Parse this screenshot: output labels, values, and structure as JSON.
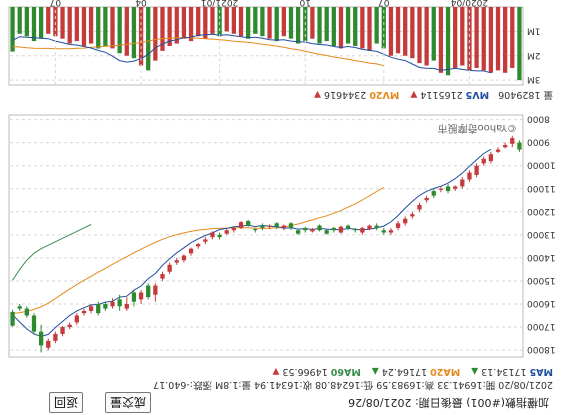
{
  "header": {
    "title_line": "加權指數(#001) 最後日期: 2021/08/26",
    "button_back": "返回",
    "button_volume": "成交量",
    "ohlc_line": "2021/08/20 開:16941.33 高:16983.59 低:16248.08 收:16341.94 量:1.8M 漲跌:-640.17",
    "ma_legend": [
      {
        "label": "MA5",
        "value": "17134.13",
        "arrow": "▲",
        "color": "#1f4e9e"
      },
      {
        "label": "MA20",
        "value": "17164.24",
        "arrow": "▲",
        "color": "#e38a1e"
      },
      {
        "label": "MA60",
        "value": "14966.53",
        "arrow": "▼",
        "color": "#3b8f4f"
      }
    ]
  },
  "volume_legend": {
    "prefix": "量",
    "value": "1829406",
    "items": [
      {
        "label": "MV5",
        "value": "2165114",
        "arrow": "▼",
        "color": "#1f4e9e"
      },
      {
        "label": "MV20",
        "value": "2344616",
        "arrow": "▼",
        "color": "#e38a1e"
      }
    ]
  },
  "watermark": "©Yahoo奇摩股市",
  "colors": {
    "up": "#c53a3a",
    "down": "#2f8a2f",
    "ma5": "#1f4e9e",
    "ma20": "#e38a1e",
    "ma60": "#3b8f4f",
    "grid": "#d6d6d6"
  },
  "chart_data": {
    "type": "candlestick",
    "price_axis": {
      "ticks": [
        8000,
        9000,
        10000,
        11000,
        12000,
        13000,
        14000,
        15000,
        16000,
        17000,
        18000
      ],
      "ylim": [
        7800,
        18300
      ]
    },
    "volume_axis": {
      "ticks": [
        "1M",
        "2M",
        "3M"
      ],
      "values": [
        1000000,
        2000000,
        3000000
      ],
      "ylim": [
        0,
        3200000
      ]
    },
    "x_labels": [
      "2020/04",
      "07",
      "10",
      "2021/01",
      "04",
      "07"
    ],
    "candles": [
      {
        "o": 9300,
        "c": 9000,
        "h": 9400,
        "l": 8900
      },
      {
        "o": 8800,
        "c": 9050,
        "h": 9200,
        "l": 8700
      },
      {
        "o": 9100,
        "c": 9200,
        "h": 9250,
        "l": 9000
      },
      {
        "o": 9300,
        "c": 9400,
        "h": 9450,
        "l": 9200
      },
      {
        "o": 9500,
        "c": 9800,
        "h": 9900,
        "l": 9400
      },
      {
        "o": 9700,
        "c": 9900,
        "h": 10000,
        "l": 9600
      },
      {
        "o": 10000,
        "c": 10400,
        "h": 10500,
        "l": 9900
      },
      {
        "o": 10300,
        "c": 10600,
        "h": 10700,
        "l": 10200
      },
      {
        "o": 10600,
        "c": 10900,
        "h": 11000,
        "l": 10500
      },
      {
        "o": 10900,
        "c": 11000,
        "h": 11100,
        "l": 10850
      },
      {
        "o": 11100,
        "c": 10900,
        "h": 11200,
        "l": 10800
      },
      {
        "o": 11000,
        "c": 11050,
        "h": 11150,
        "l": 10900
      },
      {
        "o": 11300,
        "c": 11100,
        "h": 11400,
        "l": 11000
      },
      {
        "o": 11400,
        "c": 11500,
        "h": 11600,
        "l": 11300
      },
      {
        "o": 11700,
        "c": 11900,
        "h": 12000,
        "l": 11600
      },
      {
        "o": 12100,
        "c": 12200,
        "h": 12300,
        "l": 12000
      },
      {
        "o": 12300,
        "c": 12500,
        "h": 12600,
        "l": 12200
      },
      {
        "o": 12500,
        "c": 12700,
        "h": 12800,
        "l": 12400
      },
      {
        "o": 12800,
        "c": 12900,
        "h": 13000,
        "l": 12700
      },
      {
        "o": 12900,
        "c": 12800,
        "h": 13000,
        "l": 12700
      },
      {
        "o": 12700,
        "c": 12600,
        "h": 12800,
        "l": 12500
      },
      {
        "o": 12600,
        "c": 12750,
        "h": 12800,
        "l": 12550
      },
      {
        "o": 12700,
        "c": 12900,
        "h": 13000,
        "l": 12650
      },
      {
        "o": 12800,
        "c": 12750,
        "h": 12900,
        "l": 12700
      },
      {
        "o": 12700,
        "c": 12600,
        "h": 12800,
        "l": 12550
      },
      {
        "o": 12650,
        "c": 12900,
        "h": 12950,
        "l": 12600
      },
      {
        "o": 12800,
        "c": 12700,
        "h": 12900,
        "l": 12650
      },
      {
        "o": 12950,
        "c": 12800,
        "h": 13000,
        "l": 12750
      },
      {
        "o": 12800,
        "c": 12600,
        "h": 12850,
        "l": 12550
      },
      {
        "o": 12750,
        "c": 12850,
        "h": 12900,
        "l": 12700
      },
      {
        "o": 12800,
        "c": 12700,
        "h": 12900,
        "l": 12650
      },
      {
        "o": 12950,
        "c": 12800,
        "h": 13000,
        "l": 12750
      },
      {
        "o": 12700,
        "c": 12500,
        "h": 12800,
        "l": 12450
      },
      {
        "o": 12600,
        "c": 12700,
        "h": 12800,
        "l": 12550
      },
      {
        "o": 12650,
        "c": 12500,
        "h": 12750,
        "l": 12450
      },
      {
        "o": 12600,
        "c": 12650,
        "h": 12750,
        "l": 12550
      },
      {
        "o": 12700,
        "c": 12600,
        "h": 12800,
        "l": 12500
      },
      {
        "o": 12800,
        "c": 12750,
        "h": 12900,
        "l": 12700
      },
      {
        "o": 12600,
        "c": 12400,
        "h": 12650,
        "l": 12350
      },
      {
        "o": 12450,
        "c": 12700,
        "h": 12750,
        "l": 12400
      },
      {
        "o": 12700,
        "c": 12800,
        "h": 12900,
        "l": 12650
      },
      {
        "o": 12800,
        "c": 12950,
        "h": 13000,
        "l": 12750
      },
      {
        "o": 13100,
        "c": 13000,
        "h": 13200,
        "l": 12900
      },
      {
        "o": 12900,
        "c": 13100,
        "h": 13200,
        "l": 12850
      },
      {
        "o": 13200,
        "c": 13300,
        "h": 13400,
        "l": 13100
      },
      {
        "o": 13400,
        "c": 13500,
        "h": 13600,
        "l": 13350
      },
      {
        "o": 13600,
        "c": 13800,
        "h": 13900,
        "l": 13550
      },
      {
        "o": 13900,
        "c": 14100,
        "h": 14200,
        "l": 13850
      },
      {
        "o": 14100,
        "c": 14200,
        "h": 14300,
        "l": 14000
      },
      {
        "o": 14300,
        "c": 14600,
        "h": 14700,
        "l": 14200
      },
      {
        "o": 14700,
        "c": 14900,
        "h": 15000,
        "l": 14600
      },
      {
        "o": 15200,
        "c": 15600,
        "h": 15900,
        "l": 15100
      },
      {
        "o": 15700,
        "c": 15200,
        "h": 15800,
        "l": 15100
      },
      {
        "o": 15500,
        "c": 15800,
        "h": 16000,
        "l": 15400
      },
      {
        "o": 15900,
        "c": 15500,
        "h": 16100,
        "l": 15400
      },
      {
        "o": 16000,
        "c": 16200,
        "h": 16300,
        "l": 15700
      },
      {
        "o": 16100,
        "c": 15800,
        "h": 16300,
        "l": 15600
      },
      {
        "o": 15900,
        "c": 16100,
        "h": 16200,
        "l": 15750
      },
      {
        "o": 16200,
        "c": 16000,
        "h": 16300,
        "l": 15900
      },
      {
        "o": 16400,
        "c": 16000,
        "h": 16500,
        "l": 15900
      },
      {
        "o": 16100,
        "c": 16300,
        "h": 16400,
        "l": 16000
      },
      {
        "o": 16300,
        "c": 16400,
        "h": 16500,
        "l": 16200
      },
      {
        "o": 16500,
        "c": 16800,
        "h": 16900,
        "l": 16400
      },
      {
        "o": 16900,
        "c": 17000,
        "h": 17100,
        "l": 16800
      },
      {
        "o": 17000,
        "c": 17300,
        "h": 17400,
        "l": 16950
      },
      {
        "o": 17300,
        "c": 17600,
        "h": 17700,
        "l": 17200
      },
      {
        "o": 17600,
        "c": 17900,
        "h": 18000,
        "l": 17500
      },
      {
        "o": 17800,
        "c": 17200,
        "h": 18100,
        "l": 16900
      },
      {
        "o": 17200,
        "c": 16500,
        "h": 17300,
        "l": 16400
      },
      {
        "o": 16500,
        "c": 16200,
        "h": 16600,
        "l": 16100
      },
      {
        "o": 16200,
        "c": 16100,
        "h": 16300,
        "l": 16000
      },
      {
        "o": 16941,
        "c": 16342,
        "h": 16984,
        "l": 16248
      }
    ],
    "volumes": [
      3000000,
      2500000,
      2700000,
      2600000,
      2700000,
      2600000,
      2500000,
      2600000,
      2400000,
      2500000,
      2800000,
      2700000,
      2200000,
      2400000,
      2300000,
      2100000,
      2000000,
      1900000,
      2000000,
      1700000,
      1500000,
      1800000,
      1700000,
      1600000,
      1500000,
      1700000,
      1600000,
      1400000,
      1500000,
      1300000,
      1400000,
      1500000,
      1300000,
      1200000,
      1400000,
      1300000,
      1200000,
      1100000,
      1300000,
      1200000,
      1100000,
      1000000,
      1200000,
      1100000,
      1300000,
      1200000,
      1400000,
      1300000,
      1500000,
      1600000,
      1800000,
      2200000,
      2600000,
      2400000,
      2100000,
      2000000,
      1900000,
      1700000,
      1600000,
      1700000,
      1500000,
      1600000,
      1400000,
      1500000,
      1300000,
      1200000,
      1100000,
      1300000,
      1400000,
      1200000,
      1100000,
      1829406
    ],
    "ma60": [
      null,
      null,
      null,
      null,
      null,
      null,
      null,
      null,
      null,
      null,
      null,
      null,
      null,
      null,
      null,
      null,
      null,
      null,
      null,
      null,
      null,
      null,
      null,
      null,
      null,
      null,
      null,
      null,
      null,
      null,
      null,
      null,
      null,
      null,
      null,
      null,
      null,
      null,
      null,
      null,
      null,
      null,
      null,
      null,
      null,
      null,
      null,
      null,
      null,
      null,
      null,
      null,
      null,
      null,
      null,
      null,
      null,
      null,
      null,
      null,
      12550,
      12700,
      12850,
      13000,
      13150,
      13300,
      13450,
      13600,
      13800,
      14100,
      14500,
      14967
    ]
  }
}
